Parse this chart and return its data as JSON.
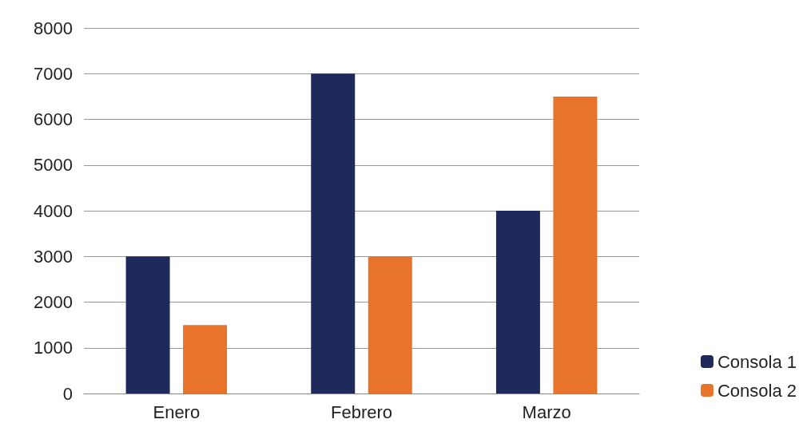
{
  "chart_data": {
    "type": "bar",
    "categories": [
      "Enero",
      "Febrero",
      "Marzo"
    ],
    "series": [
      {
        "name": "Consola 1",
        "color": "#1f2a5c",
        "values": [
          3000,
          7000,
          4000
        ]
      },
      {
        "name": "Consola 2",
        "color": "#e8732a",
        "values": [
          1500,
          3000,
          6500
        ]
      }
    ],
    "ylim": [
      0,
      8000
    ],
    "yticks": [
      0,
      1000,
      2000,
      3000,
      4000,
      5000,
      6000,
      7000,
      8000
    ],
    "grid": "y",
    "legend": "bottom right"
  }
}
